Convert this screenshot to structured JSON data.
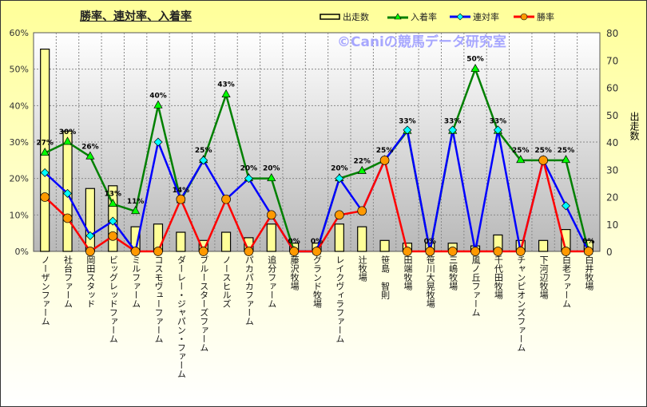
{
  "chart_data": {
    "type": "bar+line",
    "title": "勝率、連対率、入着率",
    "watermark": "©Caniの競馬データ研究室",
    "y_left": {
      "range": [
        0,
        60
      ],
      "ticks": [
        "0%",
        "10%",
        "20%",
        "30%",
        "40%",
        "50%",
        "60%"
      ]
    },
    "y_right": {
      "label": "出走数",
      "range": [
        0,
        80
      ],
      "ticks": [
        "0",
        "10",
        "20",
        "30",
        "40",
        "50",
        "60",
        "70",
        "80"
      ]
    },
    "legend": [
      "出走数",
      "入着率",
      "連対率",
      "勝率"
    ],
    "legend_position": "top-right",
    "grid": true,
    "categories": [
      "ノーザンファーム",
      "社台ファーム",
      "岡田スタッド",
      "ビッグレッドファーム",
      "ミルファーム",
      "コスモヴューファーム",
      "ダーレー・ジャパン・ファーム",
      "ブルースターズファーム",
      "ノースヒルズ",
      "パカパカファーム",
      "追分ファーム",
      "藤沢牧場",
      "グランド牧場",
      "レイクヴィラファーム",
      "辻牧場",
      "笹島　智則",
      "田端牧場",
      "笹川大晃牧場",
      "三嶋牧場",
      "風ノ丘ファーム",
      "千代田牧場",
      "チャンピオンズファーム",
      "下河辺牧場",
      "白老ファーム",
      "白井牧場"
    ],
    "series": [
      {
        "name": "出走数",
        "type": "bar",
        "axis": "right",
        "color": "#ffff99",
        "values": [
          74,
          44,
          23,
          24,
          9,
          10,
          7,
          4,
          7,
          5,
          10,
          3,
          3,
          10,
          9,
          4,
          3,
          3,
          3,
          2,
          6,
          4,
          4,
          8,
          4
        ]
      },
      {
        "name": "入着率",
        "type": "line",
        "color": "#008000",
        "marker": "triangle",
        "values": [
          27,
          30,
          26,
          13,
          11,
          40,
          14,
          25,
          43,
          20,
          20,
          0,
          0,
          20,
          22,
          25,
          33,
          0,
          33,
          50,
          33,
          25,
          25,
          25,
          0
        ],
        "labels": [
          "27%",
          "30%",
          "26%",
          "13%",
          "11%",
          "40%",
          "14%",
          "25%",
          "43%",
          "20%",
          "20%",
          "0%",
          "0%",
          "20%",
          "22%",
          "25%",
          "33%",
          "0%",
          "33%",
          "50%",
          "33%",
          "25%",
          "25%",
          "25%",
          "0%"
        ]
      },
      {
        "name": "連対率",
        "type": "line",
        "color": "#0000ff",
        "marker": "diamond",
        "values": [
          21.6,
          15.9,
          4.3,
          8.3,
          0,
          30,
          14.3,
          25,
          14.3,
          20,
          10,
          0,
          0,
          20,
          11.1,
          25,
          33.3,
          0,
          33.3,
          0,
          33.3,
          0,
          25,
          12.5,
          0
        ]
      },
      {
        "name": "勝率",
        "type": "line",
        "color": "#ff0000",
        "marker": "circle",
        "values": [
          14.9,
          9.1,
          0,
          4.2,
          0,
          0,
          14.3,
          0,
          14.3,
          0,
          10,
          0,
          0,
          10,
          11.1,
          25,
          0,
          0,
          0,
          0,
          0,
          0,
          25,
          0,
          0
        ]
      }
    ]
  }
}
